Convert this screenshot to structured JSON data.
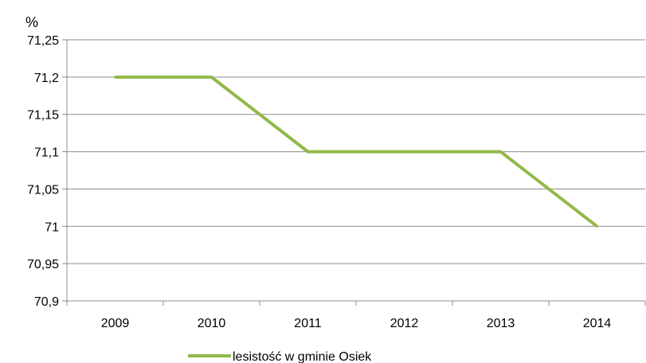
{
  "chart_data": {
    "type": "line",
    "ylabel": "%",
    "xlabel": "",
    "categories": [
      "2009",
      "2010",
      "2011",
      "2012",
      "2013",
      "2014"
    ],
    "ylim": [
      70.9,
      71.25
    ],
    "y_ticks": [
      "70,9",
      "70,95",
      "71",
      "71,05",
      "71,1",
      "71,15",
      "71,2",
      "71,25"
    ],
    "series": [
      {
        "name": "lesistość w gminie Osiek",
        "values": [
          71.2,
          71.2,
          71.1,
          71.1,
          71.1,
          71.0
        ],
        "color": "#92b94a"
      }
    ],
    "grid": true,
    "legend": "bottom"
  }
}
